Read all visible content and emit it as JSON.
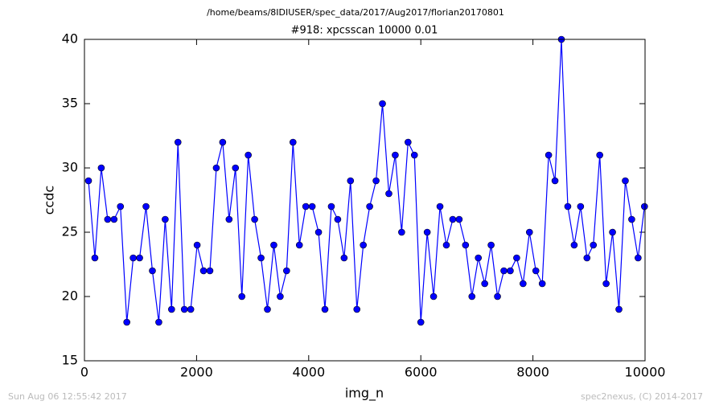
{
  "chart_data": {
    "type": "line",
    "suptitle": "/home/beams/8IDIUSER/spec_data/2017/Aug2017/florian20170801",
    "title": "#918: xpcsscan 10000 0.01",
    "xlabel": "img_n",
    "ylabel": "ccdc",
    "footer_left": "Sun Aug 06 12:55:42 2017",
    "footer_right": "spec2nexus, (C) 2014-2017",
    "x": [
      72,
      186,
      300,
      414,
      528,
      642,
      756,
      870,
      984,
      1098,
      1212,
      1326,
      1440,
      1554,
      1668,
      1782,
      1896,
      2010,
      2124,
      2238,
      2352,
      2466,
      2580,
      2694,
      2808,
      2922,
      3036,
      3150,
      3264,
      3378,
      3492,
      3606,
      3720,
      3834,
      3948,
      4062,
      4176,
      4290,
      4404,
      4518,
      4632,
      4746,
      4860,
      4974,
      5088,
      5202,
      5316,
      5430,
      5544,
      5658,
      5772,
      5886,
      6000,
      6114,
      6228,
      6342,
      6456,
      6570,
      6684,
      6798,
      6912,
      7026,
      7140,
      7254,
      7368,
      7482,
      7596,
      7710,
      7824,
      7938,
      8052,
      8166,
      8280,
      8394,
      8508,
      8622,
      8736,
      8850,
      8964,
      9078,
      9192,
      9306,
      9420,
      9534,
      9648,
      9762,
      9876,
      9990
    ],
    "series": [
      {
        "color": "#0000ff",
        "values": [
          29,
          23,
          30,
          26,
          26,
          27,
          18,
          23,
          23,
          27,
          22,
          18,
          26,
          19,
          32,
          19,
          19,
          24,
          22,
          22,
          30,
          32,
          26,
          30,
          20,
          31,
          26,
          23,
          19,
          24,
          20,
          22,
          32,
          24,
          27,
          27,
          25,
          19,
          27,
          26,
          23,
          29,
          19,
          24,
          27,
          29,
          35,
          28,
          31,
          25,
          32,
          31,
          18,
          25,
          20,
          27,
          24,
          26,
          26,
          24,
          20,
          23,
          21,
          24,
          20,
          22,
          22,
          23,
          21,
          25,
          22,
          21,
          31,
          29,
          40,
          27,
          24,
          27,
          23,
          24,
          31,
          21,
          25,
          19,
          29,
          26,
          23,
          27
        ]
      }
    ],
    "xlim": [
      0,
      10000
    ],
    "xticks": [
      0,
      2000,
      4000,
      6000,
      8000,
      10000
    ],
    "ylim": [
      15,
      40
    ],
    "yticks": [
      15,
      20,
      25,
      30,
      35,
      40
    ]
  }
}
